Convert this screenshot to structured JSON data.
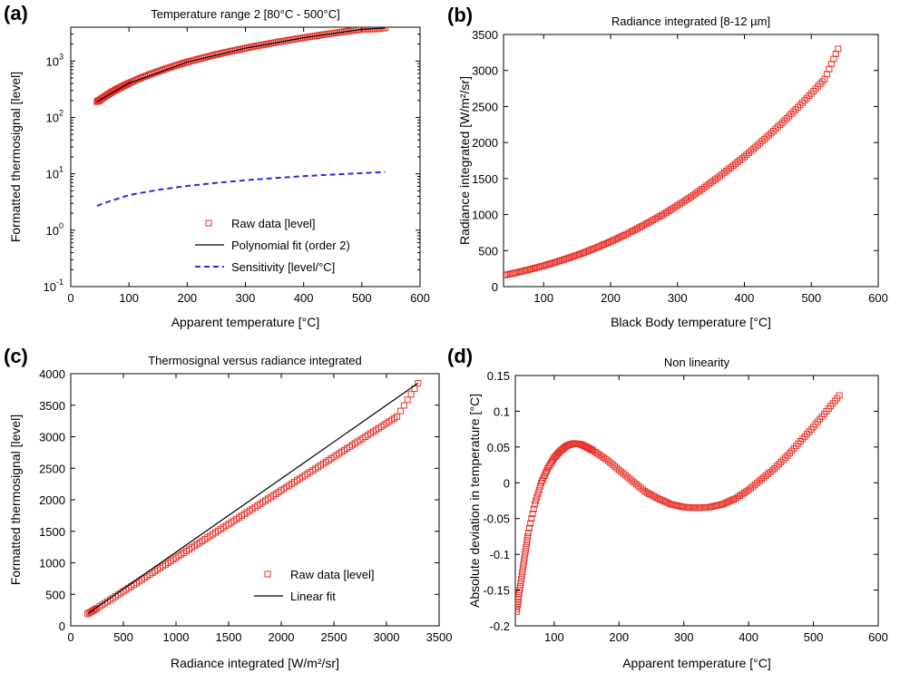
{
  "chart_data": [
    {
      "panel": "(a)",
      "type": "line",
      "title": "Temperature range 2 [80°C - 500°C]",
      "xlabel": "Apparent temperature [°C]",
      "ylabel": "Formatted thermosignal [level]",
      "xlim": [
        0,
        600
      ],
      "ylim_log": [
        -1,
        3.6
      ],
      "yscale": "log",
      "xticks": [
        "0",
        "100",
        "200",
        "300",
        "400",
        "500",
        "600"
      ],
      "yticks": [
        {
          "base": "10",
          "exp": "-1",
          "v": -1
        },
        {
          "base": "10",
          "exp": "0",
          "v": 0
        },
        {
          "base": "10",
          "exp": "1",
          "v": 1
        },
        {
          "base": "10",
          "exp": "2",
          "v": 2
        },
        {
          "base": "10",
          "exp": "3",
          "v": 3
        }
      ],
      "legend_position": "bottom-right",
      "series": [
        {
          "name": "Raw data [level]",
          "style": "markers",
          "color": "#e8332a",
          "x": [
            45,
            50,
            60,
            70,
            80,
            90,
            100,
            120,
            140,
            160,
            180,
            200,
            220,
            240,
            260,
            280,
            300,
            320,
            340,
            360,
            380,
            400,
            420,
            440,
            460,
            480,
            500,
            520,
            540
          ],
          "y": [
            190,
            205,
            240,
            280,
            320,
            360,
            405,
            500,
            600,
            710,
            830,
            960,
            1090,
            1230,
            1380,
            1530,
            1690,
            1860,
            2030,
            2210,
            2400,
            2590,
            2790,
            3000,
            3210,
            3430,
            3650,
            3680,
            3850
          ]
        },
        {
          "name": "Polynomial fit (order 2)",
          "style": "solid",
          "color": "#000000",
          "x": [
            45,
            100,
            200,
            300,
            400,
            500,
            540
          ],
          "y": [
            190,
            405,
            960,
            1690,
            2590,
            3650,
            3850
          ]
        },
        {
          "name": "Sensitivity [level/°C]",
          "style": "dashed",
          "color": "#2a2ae8",
          "x": [
            45,
            60,
            80,
            100,
            150,
            200,
            250,
            300,
            350,
            400,
            450,
            500,
            540
          ],
          "y": [
            2.7,
            3.1,
            3.6,
            4.2,
            5.2,
            6.1,
            6.9,
            7.7,
            8.4,
            9.1,
            9.7,
            10.3,
            10.8
          ]
        }
      ]
    },
    {
      "panel": "(b)",
      "type": "scatter",
      "title": "Radiance integrated [8-12 µm]",
      "xlabel": "Black Body temperature [°C]",
      "ylabel": "Radiance integrated [W/m²/sr]",
      "xlim": [
        40,
        600
      ],
      "ylim": [
        0,
        3500
      ],
      "xticks": [
        100,
        200,
        300,
        400,
        500,
        600
      ],
      "yticks": [
        0,
        500,
        1000,
        1500,
        2000,
        2500,
        3000,
        3500
      ],
      "series": [
        {
          "name": "",
          "style": "markers",
          "color": "#e8332a",
          "x": [
            42,
            60,
            80,
            100,
            120,
            140,
            160,
            180,
            200,
            220,
            240,
            260,
            280,
            300,
            320,
            340,
            360,
            380,
            400,
            420,
            440,
            460,
            480,
            500,
            520,
            540
          ],
          "y": [
            160,
            195,
            240,
            290,
            345,
            405,
            470,
            545,
            625,
            710,
            805,
            905,
            1010,
            1125,
            1245,
            1375,
            1510,
            1655,
            1805,
            1965,
            2130,
            2305,
            2490,
            2680,
            2880,
            3300
          ]
        }
      ]
    },
    {
      "panel": "(c)",
      "type": "scatter",
      "title": "Thermosignal versus radiance integrated",
      "xlabel": "Radiance integrated [W/m²/sr]",
      "ylabel": "Formatted thermosignal [level]",
      "xlim": [
        0,
        3500
      ],
      "ylim": [
        0,
        4000
      ],
      "xticks": [
        0,
        500,
        1000,
        1500,
        2000,
        2500,
        3000,
        3500
      ],
      "yticks": [
        0,
        500,
        1000,
        1500,
        2000,
        2500,
        3000,
        3500,
        4000
      ],
      "legend_position": "bottom-right",
      "series": [
        {
          "name": "Raw data [level]",
          "style": "markers",
          "color": "#e8332a",
          "x": [
            160,
            250,
            400,
            550,
            700,
            850,
            1000,
            1150,
            1300,
            1450,
            1600,
            1750,
            1900,
            2050,
            2200,
            2350,
            2500,
            2650,
            2800,
            2950,
            3100,
            3300
          ],
          "y": [
            190,
            280,
            440,
            600,
            760,
            920,
            1080,
            1240,
            1400,
            1560,
            1720,
            1880,
            2040,
            2200,
            2360,
            2520,
            2680,
            2840,
            3000,
            3160,
            3320,
            3850
          ]
        },
        {
          "name": "Linear fit",
          "style": "solid",
          "color": "#000000",
          "x": [
            160,
            3300
          ],
          "y": [
            190,
            3850
          ]
        }
      ]
    },
    {
      "panel": "(d)",
      "type": "scatter",
      "title": "Non linearity",
      "xlabel": "Apparent temperature [°C]",
      "ylabel": "Absolute deviation in temperature [°C]",
      "xlim": [
        40,
        600
      ],
      "ylim": [
        -0.2,
        0.15
      ],
      "xticks": [
        "100",
        "200",
        "300",
        "400",
        "500",
        "600"
      ],
      "yticks": [
        "-0.2",
        "-0.15",
        "-0.1",
        "-0.05",
        "0",
        "0.05",
        "0.1",
        "0.15"
      ],
      "series": [
        {
          "name": "",
          "style": "markers",
          "color": "#e8332a",
          "x": [
            42,
            45,
            50,
            55,
            60,
            70,
            80,
            90,
            100,
            110,
            120,
            130,
            140,
            150,
            160,
            180,
            200,
            220,
            240,
            260,
            280,
            300,
            320,
            340,
            360,
            380,
            400,
            420,
            440,
            460,
            480,
            500,
            520,
            540
          ],
          "y": [
            -0.18,
            -0.16,
            -0.13,
            -0.1,
            -0.07,
            -0.03,
            0.0,
            0.02,
            0.035,
            0.045,
            0.052,
            0.055,
            0.054,
            0.05,
            0.045,
            0.033,
            0.018,
            0.003,
            -0.012,
            -0.022,
            -0.03,
            -0.034,
            -0.035,
            -0.034,
            -0.03,
            -0.022,
            -0.01,
            0.005,
            0.02,
            0.038,
            0.058,
            0.078,
            0.1,
            0.122
          ]
        }
      ]
    }
  ]
}
